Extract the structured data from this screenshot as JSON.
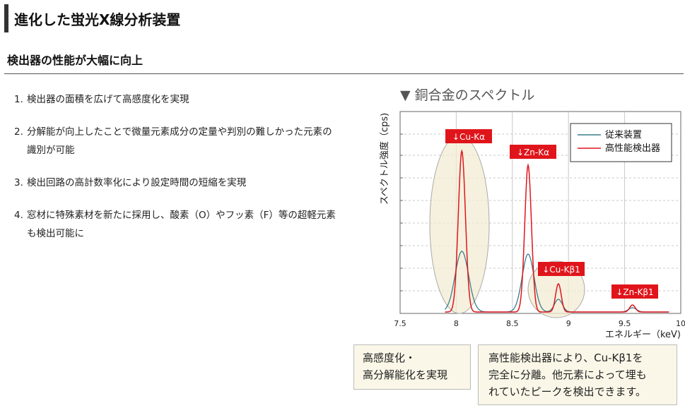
{
  "page": {
    "title": "進化した蛍光X線分析装置",
    "section_heading": "検出器の性能が大幅に向上"
  },
  "features": [
    {
      "num": "1.",
      "text": "検出器の面積を広げて高感度化を実現"
    },
    {
      "num": "2.",
      "text": "分解能が向上したことで微量元素成分の定量や判別の難しかった元素の識別が可能"
    },
    {
      "num": "3.",
      "text": "検出回路の高計数率化により設定時間の短縮を実現"
    },
    {
      "num": "4.",
      "text": "窓材に特殊素材を新たに採用し、酸素（O）やフッ素（F）等の超軽元素も検出可能に"
    }
  ],
  "chart_data": {
    "type": "line",
    "title": "▼ 銅合金のスペクトル",
    "xlabel": "エネルギー（keV)",
    "ylabel": "スペクトル強度（cps)",
    "xlim": [
      7.5,
      10
    ],
    "x_ticks": [
      "7.5",
      "8",
      "8.5",
      "9",
      "9.5",
      "10"
    ],
    "grid": true,
    "legend_position": "top-right",
    "series": [
      {
        "name": "従来装置",
        "color": "#3a7f8c"
      },
      {
        "name": "高性能検出器",
        "color": "#e0151b"
      }
    ],
    "peaks": [
      {
        "label": "↓Cu-Kα",
        "energy": 8.05
      },
      {
        "label": "↓Zn-Kα",
        "energy": 8.64
      },
      {
        "label": "↓Cu-Kβ1",
        "energy": 8.91
      },
      {
        "label": "↓Zn-Kβ1",
        "energy": 9.57
      }
    ]
  },
  "callouts": [
    {
      "text_lines": [
        "高感度化・",
        "高分解能化を実現"
      ]
    },
    {
      "text_lines": [
        "高性能検出器により、Cu-Kβ1を",
        "完全に分離。他元素によって埋も",
        "れていたピークを検出できます。"
      ]
    }
  ]
}
